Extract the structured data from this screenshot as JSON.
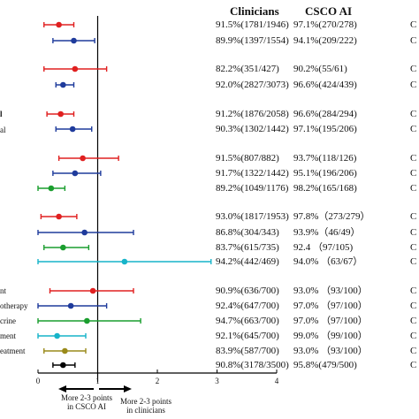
{
  "headers": {
    "clinicians": "Clinicians",
    "csco_ai": "CSCO AI"
  },
  "left_labels": [
    {
      "text": "l",
      "bold": true
    },
    {
      "text": "al",
      "bold": false
    },
    {
      "text": "nt",
      "bold": false
    },
    {
      "text": "otherapy",
      "bold": false
    },
    {
      "text": "crine",
      "bold": false
    },
    {
      "text": "ment",
      "bold": false
    },
    {
      "text": "eatment",
      "bold": false
    }
  ],
  "row_tail": "C",
  "footnotes": {
    "left": "More 2-3 points\nin CSCO AI",
    "right": "More 2-3 points\nin clinicians"
  },
  "colors": {
    "red": "#e02020",
    "blue": "#1f3b9c",
    "green": "#1a9e2e",
    "cyan": "#17b4c9",
    "olive": "#9a8a1a",
    "black": "#000000"
  },
  "chart_data": {
    "type": "forest",
    "xlim": [
      0,
      4
    ],
    "reference_line": 1,
    "x_ticks": [
      "0",
      "1",
      "2",
      "3",
      "4"
    ],
    "rows": [
      {
        "estimate": 0.35,
        "lower": 0.1,
        "upper": 0.6,
        "color": "red",
        "clinicians": "91.5%(1781/1946)",
        "csco_ai": "97.1%(270/278)"
      },
      {
        "estimate": 0.6,
        "lower": 0.25,
        "upper": 0.95,
        "color": "blue",
        "clinicians": "89.9%(1397/1554)",
        "csco_ai": "94.1%(209/222)"
      },
      {
        "estimate": 0.62,
        "lower": 0.1,
        "upper": 1.15,
        "color": "red",
        "clinicians": "82.2%(351/427)",
        "csco_ai": "90.2%(55/61)"
      },
      {
        "estimate": 0.42,
        "lower": 0.3,
        "upper": 0.6,
        "color": "blue",
        "clinicians": "92.0%(2827/3073)",
        "csco_ai": "96.6%(424/439)"
      },
      {
        "estimate": 0.38,
        "lower": 0.15,
        "upper": 0.6,
        "color": "red",
        "clinicians": "91.2%(1876/2058)",
        "csco_ai": "96.6%(284/294)"
      },
      {
        "estimate": 0.58,
        "lower": 0.3,
        "upper": 0.9,
        "color": "blue",
        "clinicians": "90.3%(1302/1442)",
        "csco_ai": "97.1%(195/206)"
      },
      {
        "estimate": 0.75,
        "lower": 0.35,
        "upper": 1.35,
        "color": "red",
        "clinicians": "91.5%(807/882)",
        "csco_ai": "93.7%(118/126)"
      },
      {
        "estimate": 0.62,
        "lower": 0.25,
        "upper": 1.05,
        "color": "blue",
        "clinicians": "91.7%(1322/1442)",
        "csco_ai": "95.1%(196/206)"
      },
      {
        "estimate": 0.22,
        "lower": 0.0,
        "upper": 0.45,
        "color": "green",
        "clinicians": "89.2%(1049/1176)",
        "csco_ai": "98.2%(165/168)"
      },
      {
        "estimate": 0.35,
        "lower": 0.05,
        "upper": 0.65,
        "color": "red",
        "clinicians": "93.0%(1817/1953)",
        "csco_ai": "97.8%（273/279）"
      },
      {
        "estimate": 0.78,
        "lower": 0.0,
        "upper": 1.6,
        "color": "blue",
        "clinicians": "86.8%(304/343)",
        "csco_ai": "93.9%（46/49）"
      },
      {
        "estimate": 0.42,
        "lower": 0.1,
        "upper": 0.85,
        "color": "green",
        "clinicians": "83.7%(615/735)",
        "csco_ai": "92.4 （97/105)"
      },
      {
        "estimate": 1.45,
        "lower": 0.0,
        "upper": 2.9,
        "color": "cyan",
        "clinicians": "94.2%(442/469)",
        "csco_ai": "94.0% （63/67）"
      },
      {
        "estimate": 0.92,
        "lower": 0.2,
        "upper": 1.6,
        "color": "red",
        "clinicians": "90.9%(636/700)",
        "csco_ai": "93.0% （93/100）"
      },
      {
        "estimate": 0.55,
        "lower": 0.0,
        "upper": 1.15,
        "color": "blue",
        "clinicians": "92.4%(647/700)",
        "csco_ai": "97.0% （97/100）"
      },
      {
        "estimate": 0.82,
        "lower": 0.0,
        "upper": 1.72,
        "color": "green",
        "clinicians": "94.7%(663/700)",
        "csco_ai": "97.0% （97/100）"
      },
      {
        "estimate": 0.32,
        "lower": 0.0,
        "upper": 0.8,
        "color": "cyan",
        "clinicians": "92.1%(645/700)",
        "csco_ai": "99.0% （99/100）"
      },
      {
        "estimate": 0.45,
        "lower": 0.1,
        "upper": 0.8,
        "color": "olive",
        "clinicians": "83.9%(587/700)",
        "csco_ai": "93.0% （93/100）"
      },
      {
        "estimate": 0.42,
        "lower": 0.25,
        "upper": 0.62,
        "color": "black",
        "clinicians": "90.8%(3178/3500)",
        "csco_ai": "95.8%(479/500)"
      }
    ]
  }
}
